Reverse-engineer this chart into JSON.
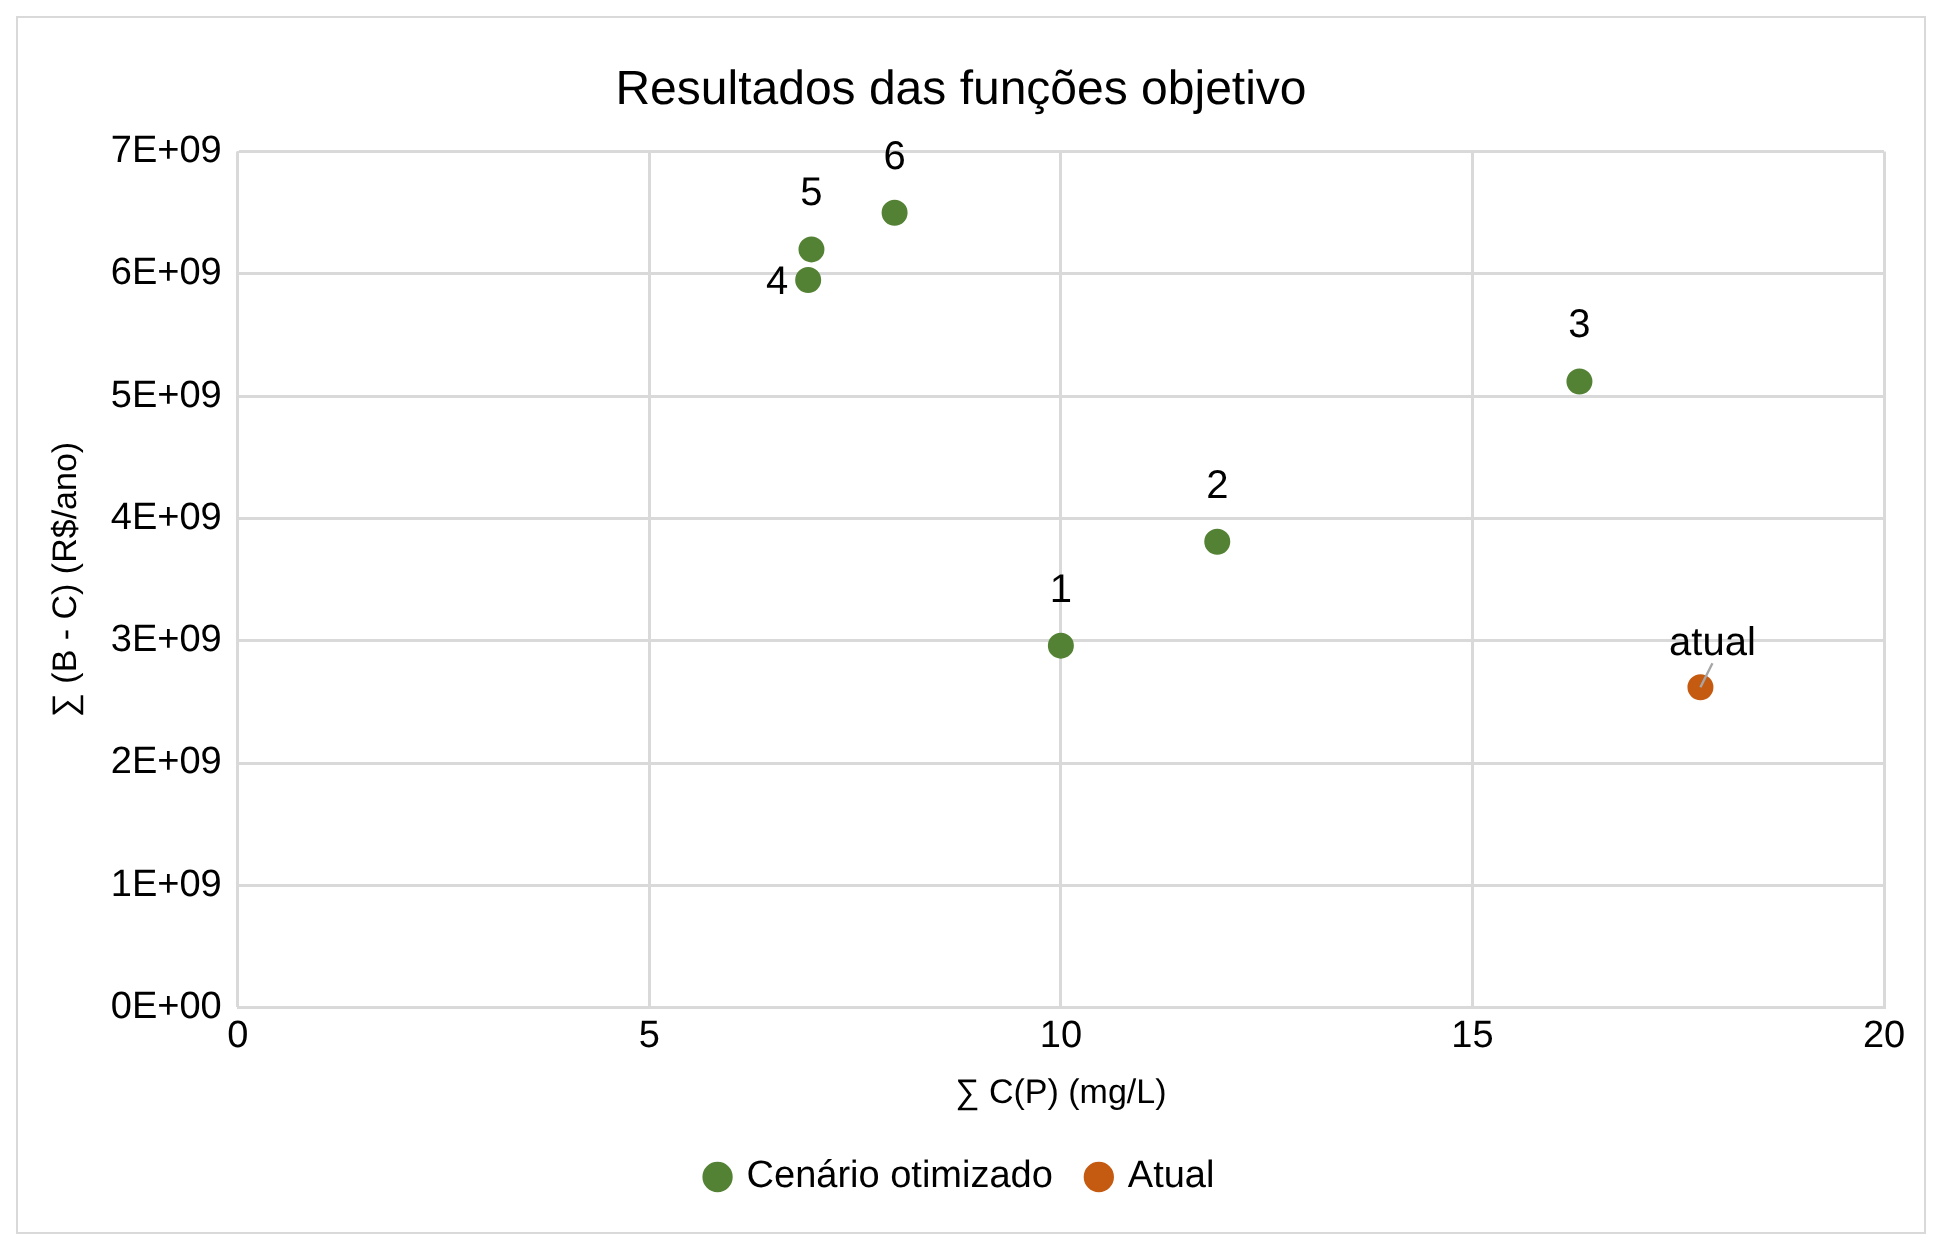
{
  "chart_data": {
    "type": "scatter",
    "title": "Resultados das funções objetivo",
    "xlabel": "∑ C(P) (mg/L)",
    "ylabel": "∑ (B - C) (R$/ano)",
    "series": [
      {
        "name": "Cenário otimizado",
        "color": "#548235",
        "x": [
          10,
          11.9,
          16.3,
          6.93,
          6.97,
          7.98
        ],
        "values": [
          2960000000,
          3810000000,
          5120000000,
          5950000000,
          6200000000,
          6500000000
        ]
      },
      {
        "name": "Atual",
        "color": "#c55a11",
        "x": [
          17.77
        ],
        "values": [
          2620000000
        ]
      }
    ],
    "xlim": [
      0,
      20
    ],
    "xticks": [
      0,
      5,
      10,
      15,
      20
    ],
    "ylim": [
      0,
      7000000000
    ],
    "yticks": [
      {
        "value": 0,
        "label": "0E+00"
      },
      {
        "value": 1000000000,
        "label": "1E+09"
      },
      {
        "value": 2000000000,
        "label": "2E+09"
      },
      {
        "value": 3000000000,
        "label": "3E+09"
      },
      {
        "value": 4000000000,
        "label": "4E+09"
      },
      {
        "value": 5000000000,
        "label": "5E+09"
      },
      {
        "value": 6000000000,
        "label": "6E+09"
      },
      {
        "value": 7000000000,
        "label": "7E+09"
      }
    ],
    "annotations": [
      {
        "text": "1",
        "x": 10,
        "y": 2960000000
      },
      {
        "text": "2",
        "x": 11.9,
        "y": 3810000000
      },
      {
        "text": "3",
        "x": 16.3,
        "y": 5120000000
      },
      {
        "text": "4",
        "x": 6.93,
        "y": 5950000000
      },
      {
        "text": "5",
        "x": 6.97,
        "y": 6200000000
      },
      {
        "text": "6",
        "x": 7.98,
        "y": 6500000000
      },
      {
        "text": "atual",
        "x": 17.77,
        "y": 2620000000
      }
    ],
    "grid": true,
    "legend": "bottom",
    "marker": "circle"
  }
}
